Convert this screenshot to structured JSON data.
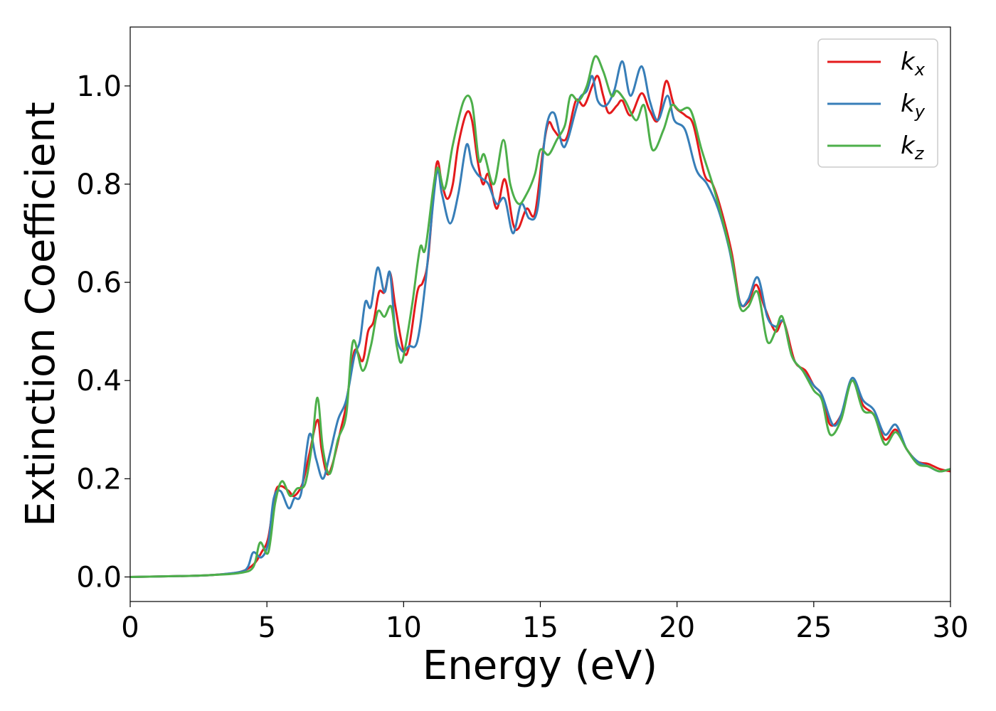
{
  "chart_data": {
    "type": "line",
    "title": "",
    "xlabel": "Energy (eV)",
    "ylabel": "Extinction Coefficient",
    "xlim": [
      0,
      30
    ],
    "ylim": [
      -0.05,
      1.12
    ],
    "xticks": [
      0,
      5,
      10,
      15,
      20,
      25,
      30
    ],
    "xtick_labels": [
      "0",
      "5",
      "10",
      "15",
      "20",
      "25",
      "30"
    ],
    "yticks": [
      0.0,
      0.2,
      0.4,
      0.6,
      0.8,
      1.0
    ],
    "ytick_labels": [
      "0.0",
      "0.2",
      "0.4",
      "0.6",
      "0.8",
      "1.0"
    ],
    "grid": false,
    "legend_position": "top-right",
    "series": [
      {
        "name": "kx",
        "label_main": "k",
        "label_sub": "x",
        "color": "#e41a1c",
        "points": [
          [
            0,
            0
          ],
          [
            2,
            0.002
          ],
          [
            3,
            0.004
          ],
          [
            4,
            0.01
          ],
          [
            4.5,
            0.025
          ],
          [
            4.8,
            0.05
          ],
          [
            5.05,
            0.08
          ],
          [
            5.3,
            0.17
          ],
          [
            5.5,
            0.185
          ],
          [
            5.8,
            0.175
          ],
          [
            6.0,
            0.165
          ],
          [
            6.3,
            0.19
          ],
          [
            6.55,
            0.25
          ],
          [
            6.85,
            0.32
          ],
          [
            7.0,
            0.26
          ],
          [
            7.2,
            0.21
          ],
          [
            7.4,
            0.23
          ],
          [
            7.7,
            0.3
          ],
          [
            7.9,
            0.35
          ],
          [
            8.2,
            0.46
          ],
          [
            8.5,
            0.44
          ],
          [
            8.7,
            0.5
          ],
          [
            8.9,
            0.52
          ],
          [
            9.1,
            0.58
          ],
          [
            9.3,
            0.58
          ],
          [
            9.5,
            0.62
          ],
          [
            9.7,
            0.55
          ],
          [
            10.0,
            0.46
          ],
          [
            10.2,
            0.47
          ],
          [
            10.5,
            0.58
          ],
          [
            10.7,
            0.6
          ],
          [
            10.9,
            0.65
          ],
          [
            11.2,
            0.84
          ],
          [
            11.4,
            0.8
          ],
          [
            11.6,
            0.77
          ],
          [
            11.8,
            0.8
          ],
          [
            12.0,
            0.88
          ],
          [
            12.3,
            0.945
          ],
          [
            12.5,
            0.93
          ],
          [
            12.7,
            0.85
          ],
          [
            12.9,
            0.8
          ],
          [
            13.1,
            0.82
          ],
          [
            13.4,
            0.75
          ],
          [
            13.7,
            0.81
          ],
          [
            14.0,
            0.72
          ],
          [
            14.2,
            0.71
          ],
          [
            14.5,
            0.75
          ],
          [
            14.8,
            0.74
          ],
          [
            15.1,
            0.87
          ],
          [
            15.3,
            0.925
          ],
          [
            15.5,
            0.91
          ],
          [
            15.8,
            0.89
          ],
          [
            16.0,
            0.9
          ],
          [
            16.3,
            0.97
          ],
          [
            16.6,
            0.96
          ],
          [
            16.9,
            1.0
          ],
          [
            17.1,
            1.02
          ],
          [
            17.3,
            0.98
          ],
          [
            17.5,
            0.945
          ],
          [
            17.8,
            0.96
          ],
          [
            18.0,
            0.97
          ],
          [
            18.3,
            0.94
          ],
          [
            18.7,
            0.985
          ],
          [
            19.0,
            0.95
          ],
          [
            19.3,
            0.93
          ],
          [
            19.6,
            1.01
          ],
          [
            19.9,
            0.96
          ],
          [
            20.3,
            0.94
          ],
          [
            20.6,
            0.92
          ],
          [
            21.0,
            0.82
          ],
          [
            21.3,
            0.8
          ],
          [
            21.6,
            0.75
          ],
          [
            22.0,
            0.66
          ],
          [
            22.3,
            0.56
          ],
          [
            22.6,
            0.56
          ],
          [
            22.9,
            0.595
          ],
          [
            23.2,
            0.55
          ],
          [
            23.6,
            0.5
          ],
          [
            23.9,
            0.52
          ],
          [
            24.3,
            0.44
          ],
          [
            24.7,
            0.42
          ],
          [
            25.0,
            0.39
          ],
          [
            25.3,
            0.37
          ],
          [
            25.6,
            0.31
          ],
          [
            26.0,
            0.33
          ],
          [
            26.4,
            0.4
          ],
          [
            26.8,
            0.35
          ],
          [
            27.2,
            0.33
          ],
          [
            27.6,
            0.28
          ],
          [
            28.0,
            0.3
          ],
          [
            28.4,
            0.26
          ],
          [
            28.8,
            0.235
          ],
          [
            29.2,
            0.23
          ],
          [
            29.6,
            0.22
          ],
          [
            30.0,
            0.215
          ]
        ]
      },
      {
        "name": "ky",
        "label_main": "k",
        "label_sub": "y",
        "color": "#377eb8",
        "points": [
          [
            0,
            0
          ],
          [
            2,
            0.002
          ],
          [
            3,
            0.004
          ],
          [
            4,
            0.01
          ],
          [
            4.3,
            0.02
          ],
          [
            4.5,
            0.05
          ],
          [
            4.8,
            0.04
          ],
          [
            5.05,
            0.07
          ],
          [
            5.25,
            0.16
          ],
          [
            5.5,
            0.175
          ],
          [
            5.8,
            0.14
          ],
          [
            6.0,
            0.16
          ],
          [
            6.25,
            0.17
          ],
          [
            6.55,
            0.29
          ],
          [
            6.8,
            0.24
          ],
          [
            7.05,
            0.2
          ],
          [
            7.3,
            0.25
          ],
          [
            7.6,
            0.32
          ],
          [
            7.9,
            0.36
          ],
          [
            8.2,
            0.45
          ],
          [
            8.4,
            0.48
          ],
          [
            8.6,
            0.56
          ],
          [
            8.8,
            0.55
          ],
          [
            9.05,
            0.63
          ],
          [
            9.3,
            0.58
          ],
          [
            9.5,
            0.62
          ],
          [
            9.7,
            0.5
          ],
          [
            9.95,
            0.46
          ],
          [
            10.2,
            0.47
          ],
          [
            10.5,
            0.48
          ],
          [
            10.8,
            0.6
          ],
          [
            11.2,
            0.82
          ],
          [
            11.4,
            0.78
          ],
          [
            11.7,
            0.72
          ],
          [
            12.0,
            0.78
          ],
          [
            12.3,
            0.88
          ],
          [
            12.5,
            0.84
          ],
          [
            12.7,
            0.82
          ],
          [
            12.9,
            0.81
          ],
          [
            13.1,
            0.8
          ],
          [
            13.4,
            0.76
          ],
          [
            13.7,
            0.77
          ],
          [
            14.0,
            0.7
          ],
          [
            14.3,
            0.76
          ],
          [
            14.6,
            0.73
          ],
          [
            14.9,
            0.75
          ],
          [
            15.2,
            0.91
          ],
          [
            15.5,
            0.945
          ],
          [
            15.8,
            0.88
          ],
          [
            16.0,
            0.89
          ],
          [
            16.4,
            0.97
          ],
          [
            16.7,
            0.99
          ],
          [
            16.9,
            1.02
          ],
          [
            17.1,
            0.97
          ],
          [
            17.4,
            0.96
          ],
          [
            17.7,
            0.99
          ],
          [
            18.0,
            1.05
          ],
          [
            18.3,
            0.98
          ],
          [
            18.7,
            1.04
          ],
          [
            19.0,
            0.97
          ],
          [
            19.3,
            0.93
          ],
          [
            19.65,
            0.98
          ],
          [
            19.9,
            0.93
          ],
          [
            20.3,
            0.91
          ],
          [
            20.7,
            0.83
          ],
          [
            21.1,
            0.8
          ],
          [
            21.5,
            0.75
          ],
          [
            21.9,
            0.67
          ],
          [
            22.3,
            0.56
          ],
          [
            22.6,
            0.565
          ],
          [
            22.95,
            0.61
          ],
          [
            23.3,
            0.53
          ],
          [
            23.6,
            0.51
          ],
          [
            23.9,
            0.52
          ],
          [
            24.2,
            0.45
          ],
          [
            24.6,
            0.42
          ],
          [
            25.0,
            0.39
          ],
          [
            25.3,
            0.37
          ],
          [
            25.7,
            0.31
          ],
          [
            26.0,
            0.33
          ],
          [
            26.4,
            0.405
          ],
          [
            26.8,
            0.36
          ],
          [
            27.2,
            0.34
          ],
          [
            27.6,
            0.29
          ],
          [
            28.0,
            0.31
          ],
          [
            28.4,
            0.26
          ],
          [
            28.8,
            0.235
          ],
          [
            29.2,
            0.225
          ],
          [
            29.6,
            0.215
          ],
          [
            30.0,
            0.22
          ]
        ]
      },
      {
        "name": "kz",
        "label_main": "k",
        "label_sub": "z",
        "color": "#4daf4a",
        "points": [
          [
            0,
            0
          ],
          [
            2,
            0.002
          ],
          [
            3,
            0.004
          ],
          [
            4,
            0.008
          ],
          [
            4.5,
            0.02
          ],
          [
            4.75,
            0.07
          ],
          [
            5.05,
            0.05
          ],
          [
            5.3,
            0.15
          ],
          [
            5.55,
            0.195
          ],
          [
            5.85,
            0.165
          ],
          [
            6.1,
            0.18
          ],
          [
            6.4,
            0.19
          ],
          [
            6.65,
            0.27
          ],
          [
            6.85,
            0.365
          ],
          [
            7.05,
            0.26
          ],
          [
            7.3,
            0.21
          ],
          [
            7.6,
            0.28
          ],
          [
            7.9,
            0.33
          ],
          [
            8.15,
            0.48
          ],
          [
            8.5,
            0.42
          ],
          [
            8.8,
            0.47
          ],
          [
            9.05,
            0.54
          ],
          [
            9.3,
            0.53
          ],
          [
            9.55,
            0.55
          ],
          [
            9.75,
            0.47
          ],
          [
            9.95,
            0.44
          ],
          [
            10.3,
            0.55
          ],
          [
            10.6,
            0.67
          ],
          [
            10.8,
            0.67
          ],
          [
            11.2,
            0.83
          ],
          [
            11.5,
            0.79
          ],
          [
            11.8,
            0.88
          ],
          [
            12.2,
            0.97
          ],
          [
            12.5,
            0.965
          ],
          [
            12.75,
            0.85
          ],
          [
            12.95,
            0.86
          ],
          [
            13.3,
            0.8
          ],
          [
            13.65,
            0.89
          ],
          [
            13.9,
            0.8
          ],
          [
            14.2,
            0.76
          ],
          [
            14.5,
            0.78
          ],
          [
            14.8,
            0.82
          ],
          [
            15.0,
            0.87
          ],
          [
            15.3,
            0.86
          ],
          [
            15.6,
            0.89
          ],
          [
            15.9,
            0.92
          ],
          [
            16.1,
            0.98
          ],
          [
            16.4,
            0.97
          ],
          [
            16.7,
            1.0
          ],
          [
            17.0,
            1.06
          ],
          [
            17.3,
            1.03
          ],
          [
            17.6,
            0.98
          ],
          [
            17.8,
            0.99
          ],
          [
            18.1,
            0.97
          ],
          [
            18.5,
            0.93
          ],
          [
            18.8,
            0.96
          ],
          [
            19.1,
            0.87
          ],
          [
            19.5,
            0.91
          ],
          [
            19.8,
            0.96
          ],
          [
            20.1,
            0.95
          ],
          [
            20.5,
            0.95
          ],
          [
            20.9,
            0.87
          ],
          [
            21.3,
            0.8
          ],
          [
            21.6,
            0.74
          ],
          [
            22.0,
            0.65
          ],
          [
            22.3,
            0.55
          ],
          [
            22.6,
            0.55
          ],
          [
            22.95,
            0.58
          ],
          [
            23.3,
            0.48
          ],
          [
            23.6,
            0.5
          ],
          [
            23.85,
            0.53
          ],
          [
            24.2,
            0.45
          ],
          [
            24.6,
            0.42
          ],
          [
            25.0,
            0.38
          ],
          [
            25.3,
            0.36
          ],
          [
            25.6,
            0.29
          ],
          [
            26.0,
            0.32
          ],
          [
            26.4,
            0.4
          ],
          [
            26.8,
            0.34
          ],
          [
            27.2,
            0.33
          ],
          [
            27.6,
            0.27
          ],
          [
            28.0,
            0.295
          ],
          [
            28.4,
            0.26
          ],
          [
            28.8,
            0.23
          ],
          [
            29.2,
            0.225
          ],
          [
            29.6,
            0.215
          ],
          [
            30.0,
            0.22
          ]
        ]
      }
    ]
  }
}
